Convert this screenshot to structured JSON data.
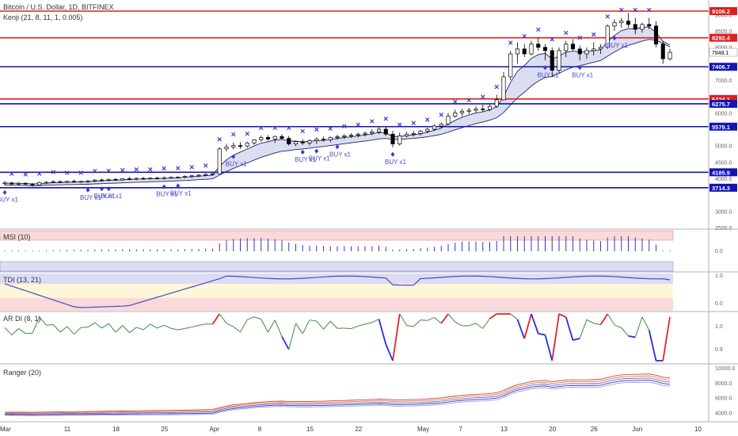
{
  "chart_data": [
    {
      "type": "candlestick",
      "title": "Bitcoin / U.S. Dollar, 1D, BITFINEX",
      "indicator": "Kenji (21, 8, 11, 1, 0.005)",
      "y_ticks": [
        "2500.0",
        "3000.0",
        "4000.0",
        "4500.0",
        "5000.0",
        "6000.0",
        "7000.0",
        "8000.0",
        "8500.0",
        "9000.0"
      ],
      "ylim": [
        2500,
        9300
      ],
      "price_levels": [
        {
          "value": 9106.2,
          "label": "9106.2",
          "color": "#e01e1e"
        },
        {
          "value": 8292.4,
          "label": "8292.4",
          "color": "#e01e1e"
        },
        {
          "value": 7406.7,
          "label": "7406.7",
          "color": "#1414b4"
        },
        {
          "value": 6424.1,
          "label": "6424.1",
          "color": "#e01e1e"
        },
        {
          "value": 6275.7,
          "label": "6275.7",
          "color": "#1414b4"
        },
        {
          "value": 5579.1,
          "label": "5579.1",
          "color": "#1414b4"
        },
        {
          "value": 4185.9,
          "label": "4185.9",
          "color": "#1414b4"
        },
        {
          "value": 3714.3,
          "label": "3714.3",
          "color": "#1414b4"
        }
      ],
      "last_price": {
        "value": 7848.1,
        "label": "7848.1"
      },
      "annotations": [
        {
          "text": "BUY x1",
          "day": 0
        },
        {
          "text": "BUY x1",
          "day": 12
        },
        {
          "text": "BUY x1",
          "day": 14
        },
        {
          "text": "BUY x1",
          "day": 15
        },
        {
          "text": "BUY x1",
          "day": 23
        },
        {
          "text": "BUY x1",
          "day": 25
        },
        {
          "text": "BUY x1",
          "day": 33
        },
        {
          "text": "BUY x1",
          "day": 43
        },
        {
          "text": "BUY x1",
          "day": 45
        },
        {
          "text": "BUY x1",
          "day": 48
        },
        {
          "text": "BUY x1",
          "day": 56
        },
        {
          "text": "BUY x1",
          "day": 78
        },
        {
          "text": "BUY x1",
          "day": 83
        },
        {
          "text": "BUY x1",
          "day": 88
        }
      ],
      "candles": [
        {
          "o": 3850,
          "h": 3920,
          "l": 3790,
          "c": 3860
        },
        {
          "o": 3860,
          "h": 3900,
          "l": 3800,
          "c": 3830
        },
        {
          "o": 3830,
          "h": 3880,
          "l": 3780,
          "c": 3850
        },
        {
          "o": 3850,
          "h": 3880,
          "l": 3800,
          "c": 3830
        },
        {
          "o": 3830,
          "h": 3860,
          "l": 3760,
          "c": 3800
        },
        {
          "o": 3800,
          "h": 3900,
          "l": 3780,
          "c": 3870
        },
        {
          "o": 3870,
          "h": 3920,
          "l": 3830,
          "c": 3880
        },
        {
          "o": 3880,
          "h": 3950,
          "l": 3850,
          "c": 3900
        },
        {
          "o": 3900,
          "h": 3940,
          "l": 3860,
          "c": 3880
        },
        {
          "o": 3880,
          "h": 3930,
          "l": 3850,
          "c": 3910
        },
        {
          "o": 3910,
          "h": 3960,
          "l": 3870,
          "c": 3890
        },
        {
          "o": 3890,
          "h": 3930,
          "l": 3850,
          "c": 3910
        },
        {
          "o": 3910,
          "h": 3960,
          "l": 3860,
          "c": 3920
        },
        {
          "o": 3920,
          "h": 3980,
          "l": 3880,
          "c": 3950
        },
        {
          "o": 3950,
          "h": 4000,
          "l": 3900,
          "c": 3940
        },
        {
          "o": 3940,
          "h": 3990,
          "l": 3900,
          "c": 3970
        },
        {
          "o": 3970,
          "h": 4010,
          "l": 3930,
          "c": 3950
        },
        {
          "o": 3950,
          "h": 4010,
          "l": 3920,
          "c": 3990
        },
        {
          "o": 3990,
          "h": 4040,
          "l": 3950,
          "c": 3980
        },
        {
          "o": 3980,
          "h": 4030,
          "l": 3940,
          "c": 4000
        },
        {
          "o": 4000,
          "h": 4050,
          "l": 3960,
          "c": 3990
        },
        {
          "o": 3990,
          "h": 4030,
          "l": 3950,
          "c": 4010
        },
        {
          "o": 4010,
          "h": 4050,
          "l": 3970,
          "c": 4000
        },
        {
          "o": 4000,
          "h": 4060,
          "l": 3960,
          "c": 4020
        },
        {
          "o": 4020,
          "h": 4060,
          "l": 3980,
          "c": 4030
        },
        {
          "o": 4030,
          "h": 4070,
          "l": 3990,
          "c": 4040
        },
        {
          "o": 4040,
          "h": 4090,
          "l": 4000,
          "c": 4060
        },
        {
          "o": 4060,
          "h": 4100,
          "l": 4020,
          "c": 4080
        },
        {
          "o": 4080,
          "h": 4120,
          "l": 4040,
          "c": 4100
        },
        {
          "o": 4100,
          "h": 4150,
          "l": 4060,
          "c": 4120
        },
        {
          "o": 4120,
          "h": 4160,
          "l": 4080,
          "c": 4140
        },
        {
          "o": 4140,
          "h": 4950,
          "l": 4130,
          "c": 4900
        },
        {
          "o": 4900,
          "h": 5050,
          "l": 4820,
          "c": 4960
        },
        {
          "o": 4960,
          "h": 5100,
          "l": 4880,
          "c": 5000
        },
        {
          "o": 5000,
          "h": 5100,
          "l": 4900,
          "c": 4990
        },
        {
          "o": 4990,
          "h": 5120,
          "l": 4930,
          "c": 5080
        },
        {
          "o": 5080,
          "h": 5200,
          "l": 5020,
          "c": 5180
        },
        {
          "o": 5180,
          "h": 5300,
          "l": 5120,
          "c": 5250
        },
        {
          "o": 5250,
          "h": 5320,
          "l": 5150,
          "c": 5200
        },
        {
          "o": 5200,
          "h": 5300,
          "l": 5080,
          "c": 5280
        },
        {
          "o": 5280,
          "h": 5350,
          "l": 5180,
          "c": 5220
        },
        {
          "o": 5220,
          "h": 5300,
          "l": 5000,
          "c": 5050
        },
        {
          "o": 5050,
          "h": 5150,
          "l": 4980,
          "c": 5120
        },
        {
          "o": 5120,
          "h": 5200,
          "l": 5020,
          "c": 5080
        },
        {
          "o": 5080,
          "h": 5200,
          "l": 5000,
          "c": 5150
        },
        {
          "o": 5150,
          "h": 5250,
          "l": 5050,
          "c": 5200
        },
        {
          "o": 5200,
          "h": 5280,
          "l": 5120,
          "c": 5180
        },
        {
          "o": 5180,
          "h": 5280,
          "l": 5100,
          "c": 5250
        },
        {
          "o": 5250,
          "h": 5330,
          "l": 5180,
          "c": 5270
        },
        {
          "o": 5270,
          "h": 5350,
          "l": 5200,
          "c": 5300
        },
        {
          "o": 5300,
          "h": 5380,
          "l": 5230,
          "c": 5320
        },
        {
          "o": 5320,
          "h": 5400,
          "l": 5250,
          "c": 5350
        },
        {
          "o": 5350,
          "h": 5430,
          "l": 5280,
          "c": 5380
        },
        {
          "o": 5380,
          "h": 5500,
          "l": 5320,
          "c": 5420
        },
        {
          "o": 5420,
          "h": 5600,
          "l": 5350,
          "c": 5500
        },
        {
          "o": 5500,
          "h": 5580,
          "l": 5300,
          "c": 5350
        },
        {
          "o": 5350,
          "h": 5450,
          "l": 4950,
          "c": 5050
        },
        {
          "o": 5050,
          "h": 5400,
          "l": 5000,
          "c": 5300
        },
        {
          "o": 5300,
          "h": 5420,
          "l": 5250,
          "c": 5350
        },
        {
          "o": 5350,
          "h": 5450,
          "l": 5280,
          "c": 5370
        },
        {
          "o": 5370,
          "h": 5480,
          "l": 5300,
          "c": 5440
        },
        {
          "o": 5440,
          "h": 5550,
          "l": 5380,
          "c": 5500
        },
        {
          "o": 5500,
          "h": 5650,
          "l": 5450,
          "c": 5600
        },
        {
          "o": 5600,
          "h": 5700,
          "l": 5520,
          "c": 5660
        },
        {
          "o": 5660,
          "h": 6000,
          "l": 5620,
          "c": 5900
        },
        {
          "o": 5900,
          "h": 6100,
          "l": 5850,
          "c": 6000
        },
        {
          "o": 6000,
          "h": 6120,
          "l": 5900,
          "c": 6050
        },
        {
          "o": 6050,
          "h": 6150,
          "l": 5960,
          "c": 6080
        },
        {
          "o": 6080,
          "h": 6200,
          "l": 6000,
          "c": 6120
        },
        {
          "o": 6120,
          "h": 6250,
          "l": 6030,
          "c": 6100
        },
        {
          "o": 6100,
          "h": 6250,
          "l": 6050,
          "c": 6200
        },
        {
          "o": 6200,
          "h": 6550,
          "l": 6150,
          "c": 6400
        },
        {
          "o": 6400,
          "h": 7250,
          "l": 6380,
          "c": 7100
        },
        {
          "o": 7100,
          "h": 7900,
          "l": 7000,
          "c": 7800
        },
        {
          "o": 7800,
          "h": 8150,
          "l": 7500,
          "c": 7950
        },
        {
          "o": 7950,
          "h": 8100,
          "l": 7700,
          "c": 7800
        },
        {
          "o": 7800,
          "h": 8200,
          "l": 7750,
          "c": 8100
        },
        {
          "o": 8100,
          "h": 8300,
          "l": 7900,
          "c": 8000
        },
        {
          "o": 8000,
          "h": 8100,
          "l": 7600,
          "c": 7900
        },
        {
          "o": 7900,
          "h": 8000,
          "l": 7100,
          "c": 7300
        },
        {
          "o": 7300,
          "h": 8000,
          "l": 7200,
          "c": 7900
        },
        {
          "o": 7900,
          "h": 8200,
          "l": 7700,
          "c": 8100
        },
        {
          "o": 8100,
          "h": 8250,
          "l": 7900,
          "c": 7950
        },
        {
          "o": 7950,
          "h": 8050,
          "l": 7600,
          "c": 7800
        },
        {
          "o": 7800,
          "h": 8000,
          "l": 7650,
          "c": 7900
        },
        {
          "o": 7900,
          "h": 8150,
          "l": 7750,
          "c": 7950
        },
        {
          "o": 7950,
          "h": 8100,
          "l": 7800,
          "c": 8000
        },
        {
          "o": 8000,
          "h": 8700,
          "l": 7950,
          "c": 8650
        },
        {
          "o": 8650,
          "h": 8850,
          "l": 8500,
          "c": 8750
        },
        {
          "o": 8750,
          "h": 8900,
          "l": 8600,
          "c": 8800
        },
        {
          "o": 8800,
          "h": 9050,
          "l": 8600,
          "c": 8700
        },
        {
          "o": 8700,
          "h": 8900,
          "l": 8400,
          "c": 8550
        },
        {
          "o": 8550,
          "h": 8750,
          "l": 8450,
          "c": 8700
        },
        {
          "o": 8700,
          "h": 8900,
          "l": 8550,
          "c": 8650
        },
        {
          "o": 8650,
          "h": 8800,
          "l": 8000,
          "c": 8100
        },
        {
          "o": 8100,
          "h": 8200,
          "l": 7500,
          "c": 7650
        },
        {
          "o": 7650,
          "h": 7950,
          "l": 7600,
          "c": 7848
        }
      ]
    },
    {
      "type": "histogram",
      "title": "MSI (10)",
      "y_ticks": [
        "0.0"
      ]
    },
    {
      "type": "line",
      "title": "TDI (13, 21)",
      "y_ticks": [
        "1.0",
        "0.0"
      ]
    },
    {
      "type": "line",
      "title": "AR DI (8, 1)",
      "y_ticks": [
        "1.0",
        "0.9"
      ]
    },
    {
      "type": "line",
      "title": "Ranger (20)",
      "y_ticks": [
        "10000.0",
        "8000.0",
        "6000.0",
        "4000.0"
      ]
    }
  ],
  "x_axis": {
    "ticks": [
      {
        "label": "Mar",
        "day": -1
      },
      {
        "label": "11",
        "day": 9
      },
      {
        "label": "18",
        "day": 16
      },
      {
        "label": "25",
        "day": 23
      },
      {
        "label": "Apr",
        "day": 30
      },
      {
        "label": "8",
        "day": 37
      },
      {
        "label": "15",
        "day": 44
      },
      {
        "label": "22",
        "day": 51
      },
      {
        "label": "May",
        "day": 60
      },
      {
        "label": "7",
        "day": 66
      },
      {
        "label": "13",
        "day": 72
      },
      {
        "label": "20",
        "day": 79
      },
      {
        "label": "26",
        "day": 85
      },
      {
        "label": "Jun",
        "day": 91
      },
      {
        "label": "10",
        "day": 100
      }
    ]
  },
  "colors": {
    "candle_up": "#ffffff",
    "candle_down": "#000000",
    "cloud": "#c8cde8",
    "marker": "#3a3ad0"
  }
}
